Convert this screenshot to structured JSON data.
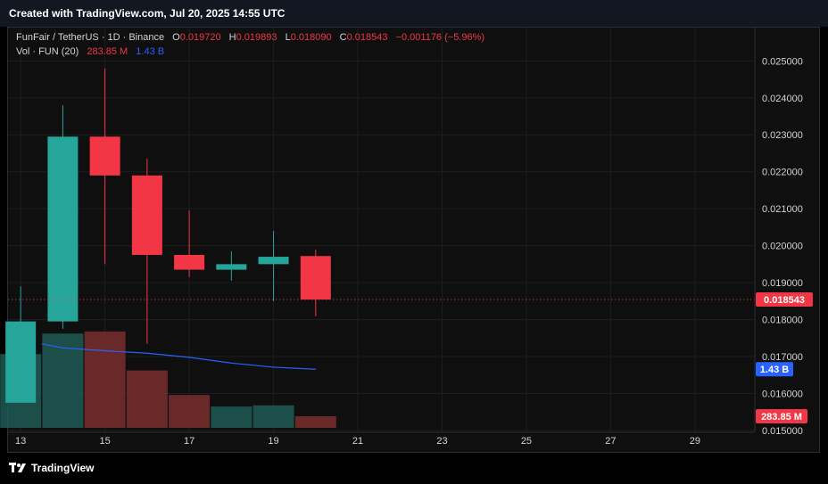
{
  "header": {
    "created_text": "Created with TradingView.com, Jul 20, 2025 14:55 UTC"
  },
  "legend": {
    "symbol": "FunFair / TetherUS · 1D · Binance",
    "o_label": "O",
    "o_value": "0.019720",
    "h_label": "H",
    "h_value": "0.019893",
    "l_label": "L",
    "l_value": "0.018090",
    "c_label": "C",
    "c_value": "0.018543",
    "change": "−0.001176 (−5.96%)",
    "vol_label": "Vol · FUN (20)",
    "vol_value": "283.85 M",
    "vol_ma_value": "1.43 B"
  },
  "footer": {
    "brand": "TradingView"
  },
  "colors": {
    "up": "#26a69a",
    "down": "#f23645",
    "up_vol": "#1e5a55",
    "down_vol": "#7a2e2e",
    "ma": "#2962ff",
    "grid": "#1e1e1e",
    "text": "#d1d4dc"
  },
  "chart_data": {
    "type": "candlestick",
    "x_tick_labels": [
      "13",
      "15",
      "17",
      "19",
      "21",
      "23",
      "25",
      "27",
      "29"
    ],
    "y_tick_labels": [
      "0.025000",
      "0.024000",
      "0.023000",
      "0.022000",
      "0.021000",
      "0.020000",
      "0.019000",
      "0.018000",
      "0.017000",
      "0.016000",
      "0.015000"
    ],
    "y_ticks": [
      0.025,
      0.024,
      0.023,
      0.022,
      0.021,
      0.02,
      0.019,
      0.018,
      0.017,
      0.016,
      0.015
    ],
    "ylim": [
      0.01495,
      0.0259
    ],
    "x_ticks": [
      13,
      15,
      17,
      19,
      21,
      23,
      25,
      27,
      29
    ],
    "xlim": [
      12.7,
      30.4
    ],
    "candles": [
      {
        "day": 13,
        "open": 0.01575,
        "high": 0.0189,
        "low": 0.01575,
        "close": 0.01795
      },
      {
        "day": 14,
        "open": 0.01795,
        "high": 0.0238,
        "low": 0.01775,
        "close": 0.02295
      },
      {
        "day": 15,
        "open": 0.02295,
        "high": 0.0248,
        "low": 0.0195,
        "close": 0.0219
      },
      {
        "day": 16,
        "open": 0.0219,
        "high": 0.02235,
        "low": 0.01735,
        "close": 0.01975
      },
      {
        "day": 17,
        "open": 0.01975,
        "high": 0.02095,
        "low": 0.01915,
        "close": 0.01935
      },
      {
        "day": 18,
        "open": 0.01935,
        "high": 0.01985,
        "low": 0.01905,
        "close": 0.0195
      },
      {
        "day": 19,
        "open": 0.0195,
        "high": 0.0204,
        "low": 0.0185,
        "close": 0.0197
      },
      {
        "day": 20,
        "open": 0.01972,
        "high": 0.019893,
        "low": 0.01809,
        "close": 0.018543
      }
    ],
    "last_price": 0.018543,
    "last_price_label": "0.018543",
    "volume_labels": {
      "volume": "283.85 M",
      "ma": "1.43 B"
    },
    "volume_scale_max": 2.5,
    "volume_unit": "B",
    "volumes": [
      {
        "day": 13,
        "value": 1.8,
        "up": true
      },
      {
        "day": 14,
        "value": 2.3,
        "up": true
      },
      {
        "day": 15,
        "value": 2.35,
        "up": false
      },
      {
        "day": 16,
        "value": 1.4,
        "up": false
      },
      {
        "day": 17,
        "value": 0.8,
        "up": false
      },
      {
        "day": 18,
        "value": 0.52,
        "up": true
      },
      {
        "day": 19,
        "value": 0.55,
        "up": true
      },
      {
        "day": 20,
        "value": 0.28385,
        "up": false
      }
    ],
    "volume_ma": [
      {
        "day": 13.5,
        "value": 2.05
      },
      {
        "day": 14,
        "value": 1.95
      },
      {
        "day": 15,
        "value": 1.88
      },
      {
        "day": 16,
        "value": 1.82
      },
      {
        "day": 17,
        "value": 1.72
      },
      {
        "day": 18,
        "value": 1.58
      },
      {
        "day": 19,
        "value": 1.48
      },
      {
        "day": 20,
        "value": 1.43
      }
    ]
  }
}
